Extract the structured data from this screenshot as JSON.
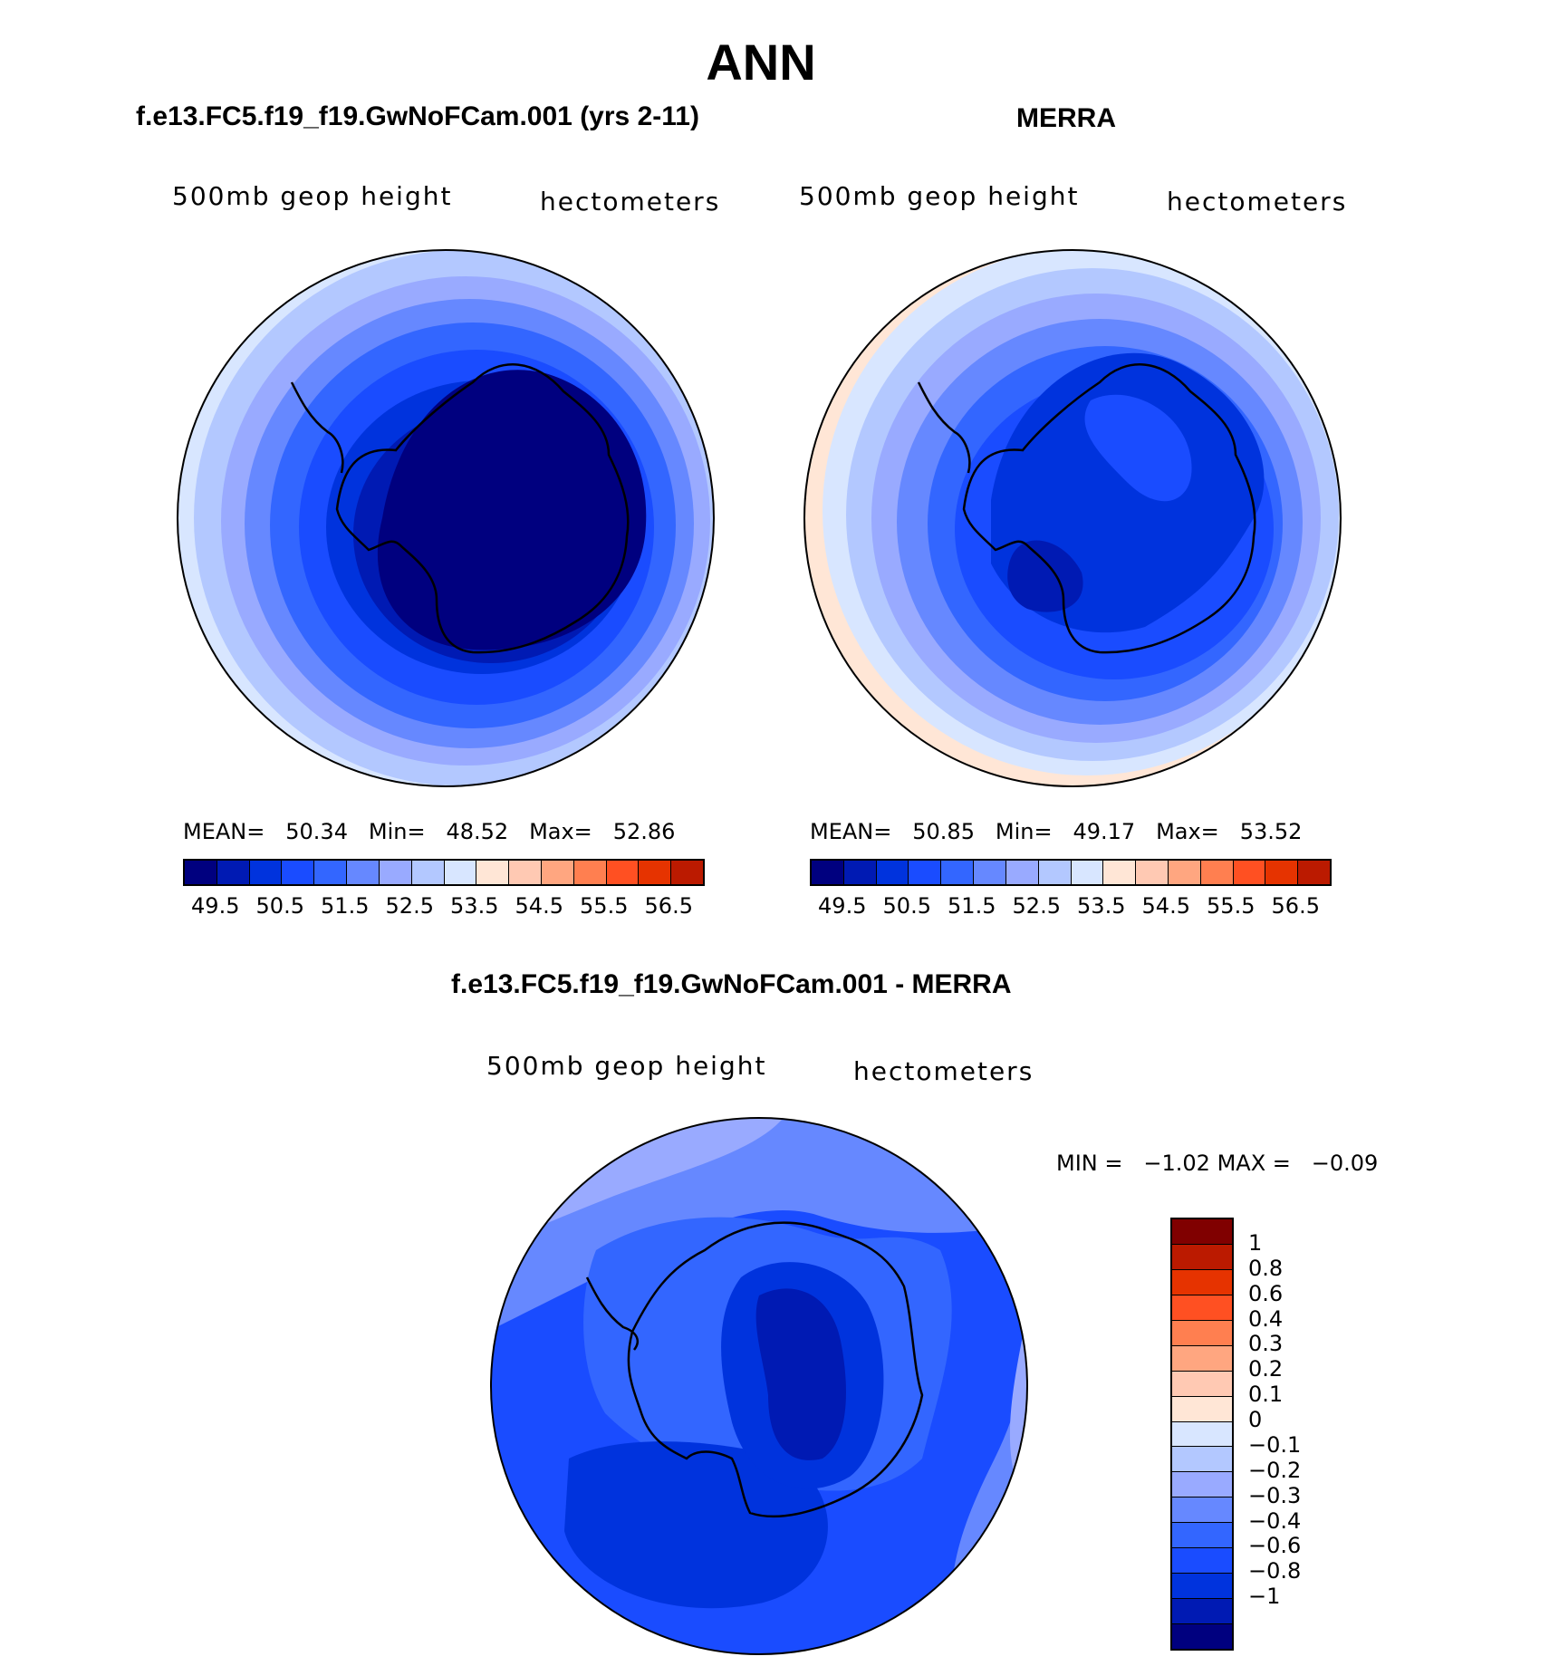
{
  "figure_title": "ANN",
  "colors": {
    "palette": [
      "#00007f",
      "#001ab3",
      "#0033dd",
      "#1a4cff",
      "#3366ff",
      "#6688ff",
      "#99aaff",
      "#b3c8ff",
      "#d8e6ff",
      "#ffe6d6",
      "#ffc9b3",
      "#ffa680",
      "#ff7f50",
      "#ff5022",
      "#e63300",
      "#bb1a00",
      "#800000"
    ],
    "land_outline": "#000000"
  },
  "chart_data": [
    {
      "type": "heatmap",
      "panel": "model",
      "title": "f.e13.FC5.f19_f19.GwNoFCam.001 (yrs 2-11)",
      "left_label": "500mb  geop  height",
      "right_label": "hectometers",
      "projection": "south polar stereographic",
      "stats": {
        "mean_label": "MEAN=",
        "mean": "50.34",
        "min_label": "Min=",
        "min": "48.52",
        "max_label": "Max=",
        "max": "52.86"
      },
      "contour_levels": [
        49.5,
        50,
        50.5,
        51,
        51.5,
        52,
        52.5,
        53,
        53.5,
        54,
        54.5,
        55,
        55.5,
        56,
        56.5
      ],
      "colorbar_tick_labels": [
        "49.5",
        "50.5",
        "51.5",
        "52.5",
        "53.5",
        "54.5",
        "55.5",
        "56.5"
      ]
    },
    {
      "type": "heatmap",
      "panel": "obs",
      "title": "MERRA",
      "left_label": "500mb  geop  height",
      "right_label": "hectometers",
      "projection": "south polar stereographic",
      "stats": {
        "mean_label": "MEAN=",
        "mean": "50.85",
        "min_label": "Min=",
        "min": "49.17",
        "max_label": "Max=",
        "max": "53.52"
      },
      "contour_levels": [
        49.5,
        50,
        50.5,
        51,
        51.5,
        52,
        52.5,
        53,
        53.5,
        54,
        54.5,
        55,
        55.5,
        56,
        56.5
      ],
      "colorbar_tick_labels": [
        "49.5",
        "50.5",
        "51.5",
        "52.5",
        "53.5",
        "54.5",
        "55.5",
        "56.5"
      ]
    },
    {
      "type": "heatmap",
      "panel": "difference",
      "title": "f.e13.FC5.f19_f19.GwNoFCam.001 - MERRA",
      "left_label": "500mb  geop  height",
      "right_label": "hectometers",
      "projection": "south polar stereographic",
      "stats": {
        "min_label": "MIN =",
        "min": "−1.02",
        "max_label": "MAX =",
        "max": "−0.09"
      },
      "contour_levels": [
        -1,
        -0.8,
        -0.6,
        -0.4,
        -0.3,
        -0.2,
        -0.1,
        0,
        0.1,
        0.2,
        0.3,
        0.4,
        0.6,
        0.8,
        1
      ],
      "colorbar_tick_labels": [
        "1",
        "0.8",
        "0.6",
        "0.4",
        "0.3",
        "0.2",
        "0.1",
        "0",
        "−0.1",
        "−0.2",
        "−0.3",
        "−0.4",
        "−0.6",
        "−0.8",
        "−1"
      ],
      "colorbar_colors": [
        "#800000",
        "#bb1a00",
        "#e63300",
        "#ff5022",
        "#ff7f50",
        "#ffa680",
        "#ffc9b3",
        "#ffe6d6",
        "#d8e6ff",
        "#b3c8ff",
        "#99aaff",
        "#6688ff",
        "#3366ff",
        "#1a4cff",
        "#0033dd",
        "#001ab3",
        "#00007f"
      ]
    }
  ]
}
